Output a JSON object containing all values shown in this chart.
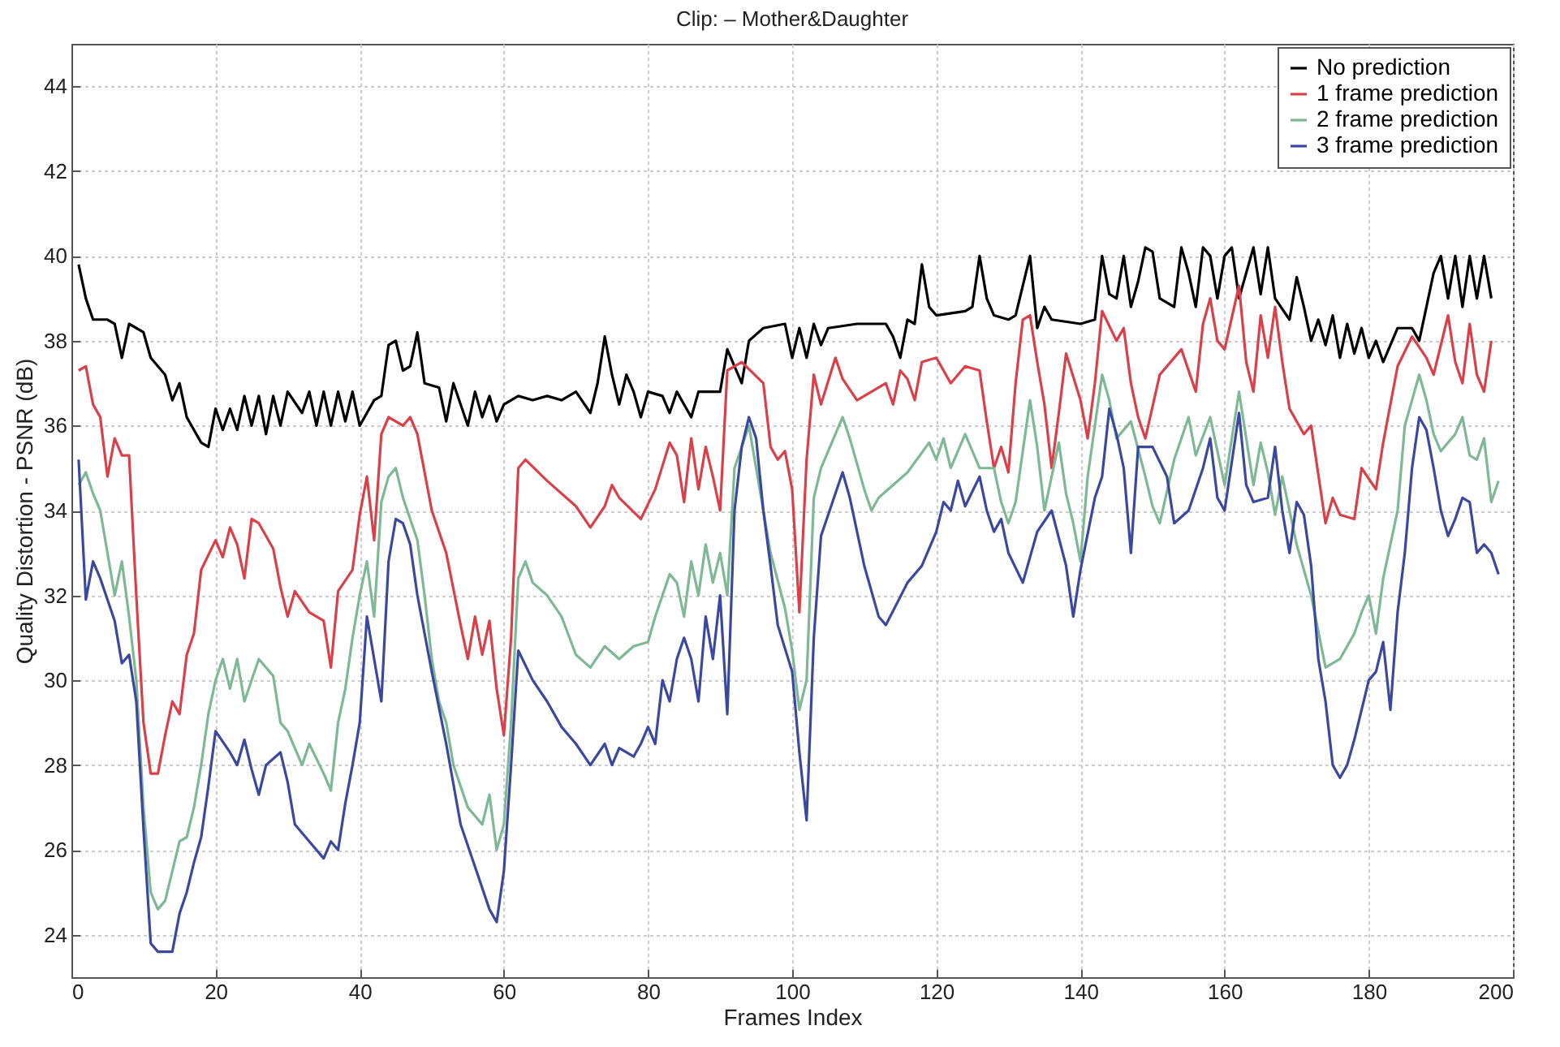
{
  "chart_data": {
    "type": "line",
    "title": "Clip: – Mother&Daughter",
    "xlabel": "Frames Index",
    "ylabel": "Quality Distortion - PSNR (dB)",
    "xlim": [
      0,
      200
    ],
    "xticks": [
      0,
      20,
      40,
      60,
      80,
      100,
      120,
      140,
      160,
      180,
      200
    ],
    "ylim": [
      23,
      45
    ],
    "yticks": [
      24,
      26,
      28,
      30,
      32,
      34,
      36,
      38,
      40,
      42,
      44
    ],
    "grid": true,
    "legend": "top right",
    "marker": "none",
    "line_style": "solid",
    "series": [
      {
        "name": "No prediction",
        "color": "#000000",
        "x": [
          1,
          2,
          3,
          5,
          6,
          7,
          8,
          10,
          11,
          13,
          14,
          15,
          16,
          18,
          19,
          20,
          21,
          22,
          23,
          24,
          25,
          26,
          27,
          28,
          29,
          30,
          32,
          33,
          34,
          35,
          36,
          37,
          38,
          39,
          40,
          42,
          43,
          44,
          45,
          46,
          47,
          48,
          49,
          51,
          52,
          53,
          55,
          56,
          57,
          58,
          59,
          60,
          62,
          64,
          66,
          68,
          70,
          72,
          73,
          74,
          75,
          76,
          77,
          78,
          79,
          80,
          82,
          83,
          84,
          86,
          87,
          90,
          91,
          92,
          93,
          94,
          96,
          99,
          100,
          101,
          102,
          103,
          104,
          105,
          109,
          113,
          114,
          115,
          116,
          117,
          118,
          119,
          120,
          124,
          125,
          126,
          127,
          128,
          130,
          131,
          133,
          134,
          135,
          136,
          140,
          142,
          143,
          144,
          145,
          146,
          147,
          148,
          149,
          150,
          151,
          153,
          154,
          155,
          156,
          157,
          158,
          159,
          160,
          161,
          162,
          163,
          164,
          165,
          166,
          167,
          169,
          170,
          171,
          172,
          173,
          174,
          175,
          176,
          177,
          178,
          179,
          180,
          181,
          182,
          184,
          186,
          187,
          188,
          189,
          190,
          191,
          192,
          193,
          194,
          195,
          196,
          197
        ],
        "values": [
          39.8,
          39.0,
          38.5,
          38.5,
          38.4,
          37.6,
          38.4,
          38.2,
          37.6,
          37.2,
          36.6,
          37.0,
          36.2,
          35.6,
          35.5,
          36.4,
          35.9,
          36.4,
          35.9,
          36.7,
          36.0,
          36.7,
          35.8,
          36.7,
          36.0,
          36.8,
          36.3,
          36.8,
          36.0,
          36.8,
          36.0,
          36.8,
          36.1,
          36.8,
          36.0,
          36.6,
          36.7,
          37.9,
          38.0,
          37.3,
          37.4,
          38.2,
          37.0,
          36.9,
          36.1,
          37.0,
          36.0,
          36.8,
          36.2,
          36.7,
          36.1,
          36.5,
          36.7,
          36.6,
          36.7,
          36.6,
          36.8,
          36.3,
          37.0,
          38.1,
          37.2,
          36.5,
          37.2,
          36.8,
          36.2,
          36.8,
          36.7,
          36.3,
          36.8,
          36.2,
          36.8,
          36.8,
          37.8,
          37.4,
          37.0,
          38.0,
          38.3,
          38.4,
          37.6,
          38.3,
          37.6,
          38.4,
          37.9,
          38.3,
          38.4,
          38.4,
          38.1,
          37.6,
          38.5,
          38.4,
          39.8,
          38.8,
          38.6,
          38.7,
          38.8,
          40.0,
          39.0,
          38.6,
          38.5,
          38.6,
          40.0,
          38.3,
          38.8,
          38.5,
          38.4,
          38.5,
          40.0,
          39.1,
          39.0,
          40.0,
          38.8,
          39.4,
          40.2,
          40.1,
          39.0,
          38.8,
          40.2,
          39.6,
          38.8,
          40.2,
          40.0,
          39.0,
          40.0,
          40.2,
          39.0,
          39.6,
          40.2,
          39.1,
          40.2,
          39.0,
          38.5,
          39.5,
          38.8,
          38.0,
          38.5,
          37.9,
          38.6,
          37.6,
          38.4,
          37.7,
          38.3,
          37.6,
          38.0,
          37.5,
          38.3,
          38.3,
          38.0,
          38.8,
          39.6,
          40.0,
          39.0,
          40.0,
          38.8,
          40.0,
          39.0,
          40.0,
          39.0
        ]
      },
      {
        "name": "1 frame prediction",
        "color": "#d9404a",
        "x": [
          1,
          2,
          3,
          4,
          5,
          6,
          7,
          8,
          9,
          10,
          11,
          12,
          13,
          14,
          15,
          16,
          17,
          18,
          20,
          21,
          22,
          23,
          24,
          25,
          26,
          28,
          29,
          30,
          31,
          33,
          35,
          36,
          37,
          39,
          40,
          41,
          42,
          43,
          44,
          46,
          47,
          48,
          50,
          52,
          54,
          55,
          56,
          57,
          58,
          59,
          60,
          61,
          62,
          63,
          66,
          70,
          72,
          74,
          75,
          76,
          79,
          81,
          83,
          84,
          85,
          86,
          87,
          88,
          89,
          90,
          91,
          93,
          96,
          97,
          98,
          99,
          100,
          101,
          102,
          103,
          104,
          106,
          107,
          109,
          113,
          114,
          115,
          116,
          117,
          118,
          120,
          122,
          124,
          126,
          127,
          128,
          129,
          130,
          131,
          132,
          133,
          134,
          135,
          136,
          137,
          138,
          140,
          141,
          142,
          143,
          145,
          146,
          147,
          148,
          149,
          151,
          154,
          156,
          157,
          158,
          159,
          160,
          162,
          163,
          164,
          165,
          166,
          167,
          168,
          169,
          171,
          172,
          174,
          175,
          176,
          178,
          179,
          181,
          182,
          184,
          186,
          188,
          189,
          191,
          192,
          193,
          194,
          195,
          196,
          197
        ],
        "values": [
          37.3,
          37.4,
          36.5,
          36.2,
          34.8,
          35.7,
          35.3,
          35.3,
          32.0,
          29.0,
          27.8,
          27.8,
          28.7,
          29.5,
          29.2,
          30.6,
          31.1,
          32.6,
          33.3,
          32.9,
          33.6,
          33.2,
          32.4,
          33.8,
          33.7,
          33.1,
          32.2,
          31.5,
          32.1,
          31.6,
          31.4,
          30.3,
          32.1,
          32.6,
          33.9,
          34.8,
          33.3,
          35.8,
          36.2,
          36.0,
          36.2,
          35.8,
          34.0,
          33.0,
          31.3,
          30.5,
          31.5,
          30.6,
          31.4,
          29.8,
          28.7,
          31.0,
          35.0,
          35.2,
          34.7,
          34.1,
          33.6,
          34.1,
          34.6,
          34.3,
          33.8,
          34.5,
          35.6,
          35.3,
          34.2,
          35.7,
          34.5,
          35.5,
          34.8,
          34.0,
          37.3,
          37.5,
          37.0,
          35.5,
          35.2,
          35.4,
          34.5,
          31.6,
          35.2,
          37.2,
          36.5,
          37.6,
          37.1,
          36.6,
          37.0,
          36.5,
          37.3,
          37.1,
          36.6,
          37.5,
          37.6,
          37.0,
          37.4,
          37.3,
          36.1,
          35.0,
          35.5,
          34.9,
          37.0,
          38.5,
          38.6,
          37.5,
          36.5,
          35.0,
          36.3,
          37.7,
          36.6,
          35.7,
          37.0,
          38.7,
          38.0,
          38.3,
          37.0,
          36.2,
          35.7,
          37.2,
          37.8,
          36.8,
          38.4,
          39.0,
          38.0,
          37.8,
          39.3,
          37.5,
          36.8,
          38.6,
          37.6,
          38.8,
          37.5,
          36.4,
          35.8,
          36.0,
          33.7,
          34.3,
          33.9,
          33.8,
          35.0,
          34.5,
          35.6,
          37.4,
          38.1,
          37.6,
          37.2,
          38.6,
          37.5,
          37.0,
          38.4,
          37.2,
          36.8,
          38.0
        ]
      },
      {
        "name": "2 frame prediction",
        "color": "#7fb894",
        "x": [
          1,
          2,
          3,
          4,
          5,
          6,
          7,
          8,
          9,
          10,
          11,
          12,
          13,
          14,
          15,
          16,
          17,
          18,
          19,
          20,
          21,
          22,
          23,
          24,
          25,
          26,
          28,
          29,
          30,
          32,
          33,
          35,
          36,
          37,
          38,
          39,
          40,
          41,
          42,
          43,
          44,
          45,
          46,
          48,
          49,
          50,
          51,
          52,
          53,
          55,
          57,
          58,
          59,
          60,
          61,
          62,
          63,
          64,
          66,
          68,
          70,
          72,
          74,
          76,
          78,
          80,
          81,
          83,
          84,
          85,
          86,
          87,
          88,
          89,
          90,
          91,
          92,
          94,
          96,
          97,
          99,
          100,
          101,
          102,
          103,
          104,
          106,
          107,
          108,
          110,
          111,
          112,
          116,
          119,
          120,
          121,
          122,
          124,
          126,
          128,
          129,
          130,
          131,
          133,
          134,
          135,
          137,
          138,
          139,
          140,
          141,
          143,
          144,
          145,
          147,
          149,
          150,
          151,
          153,
          155,
          156,
          158,
          160,
          162,
          164,
          165,
          166,
          167,
          168,
          170,
          172,
          174,
          176,
          178,
          179,
          180,
          181,
          182,
          183,
          184,
          185,
          187,
          188,
          189,
          190,
          192,
          193,
          194,
          195,
          196,
          197,
          198
        ],
        "values": [
          34.6,
          34.9,
          34.4,
          34.0,
          33.0,
          32.0,
          32.8,
          31.5,
          30.0,
          27.0,
          25.0,
          24.6,
          24.8,
          25.5,
          26.2,
          26.3,
          27.0,
          28.0,
          29.2,
          30.0,
          30.5,
          29.8,
          30.5,
          29.5,
          30.0,
          30.5,
          30.1,
          29.0,
          28.8,
          28.0,
          28.5,
          27.8,
          27.4,
          29.0,
          29.8,
          31.0,
          32.0,
          32.8,
          31.5,
          34.2,
          34.8,
          35.0,
          34.3,
          33.3,
          32.0,
          30.5,
          29.5,
          29.0,
          28.0,
          27.0,
          26.6,
          27.3,
          26.0,
          26.6,
          29.0,
          32.4,
          32.8,
          32.3,
          32.0,
          31.5,
          30.6,
          30.3,
          30.8,
          30.5,
          30.8,
          30.9,
          31.5,
          32.5,
          32.3,
          31.5,
          32.8,
          32.0,
          33.2,
          32.3,
          33.0,
          32.0,
          35.0,
          36.0,
          34.0,
          33.0,
          31.7,
          30.7,
          29.3,
          30.0,
          34.3,
          35.0,
          35.8,
          36.2,
          35.7,
          34.5,
          34.0,
          34.3,
          34.9,
          35.6,
          35.2,
          35.7,
          35.0,
          35.8,
          35.0,
          35.0,
          34.2,
          33.7,
          34.2,
          36.6,
          35.5,
          34.0,
          35.6,
          34.4,
          33.7,
          32.8,
          34.8,
          37.2,
          36.6,
          35.7,
          36.1,
          34.8,
          34.1,
          33.7,
          35.2,
          36.2,
          35.3,
          36.2,
          34.6,
          36.8,
          34.6,
          35.6,
          34.9,
          33.9,
          34.8,
          33.2,
          32.0,
          30.3,
          30.5,
          31.1,
          31.6,
          32.0,
          31.1,
          32.4,
          33.2,
          34.0,
          36.0,
          37.2,
          36.6,
          35.8,
          35.4,
          35.8,
          36.2,
          35.3,
          35.2,
          35.7,
          34.2,
          34.7
        ]
      },
      {
        "name": "3 frame prediction",
        "color": "#3b48a0",
        "x": [
          1,
          2,
          3,
          4,
          5,
          6,
          7,
          8,
          9,
          10,
          11,
          12,
          14,
          15,
          16,
          17,
          18,
          19,
          20,
          22,
          23,
          24,
          25,
          26,
          27,
          29,
          30,
          31,
          33,
          35,
          36,
          37,
          38,
          39,
          40,
          41,
          42,
          43,
          44,
          45,
          46,
          47,
          48,
          50,
          52,
          54,
          56,
          58,
          59,
          60,
          61,
          62,
          64,
          66,
          68,
          70,
          72,
          74,
          75,
          76,
          78,
          79,
          80,
          81,
          82,
          83,
          84,
          85,
          86,
          87,
          88,
          89,
          90,
          91,
          92,
          93,
          94,
          95,
          96,
          97,
          98,
          100,
          101,
          102,
          103,
          104,
          106,
          107,
          108,
          110,
          112,
          113,
          116,
          118,
          120,
          121,
          122,
          123,
          124,
          126,
          127,
          128,
          129,
          130,
          132,
          134,
          136,
          138,
          139,
          140,
          142,
          143,
          144,
          145,
          146,
          147,
          148,
          150,
          152,
          153,
          155,
          157,
          158,
          159,
          160,
          162,
          163,
          164,
          166,
          167,
          168,
          169,
          170,
          171,
          172,
          173,
          174,
          175,
          176,
          177,
          178,
          180,
          181,
          182,
          183,
          184,
          185,
          186,
          187,
          188,
          189,
          190,
          191,
          192,
          193,
          194,
          195,
          196,
          197,
          198
        ],
        "values": [
          35.2,
          31.9,
          32.8,
          32.4,
          31.9,
          31.4,
          30.4,
          30.6,
          29.5,
          26.5,
          23.8,
          23.6,
          23.6,
          24.5,
          25.0,
          25.7,
          26.3,
          27.5,
          28.8,
          28.3,
          28.0,
          28.6,
          27.9,
          27.3,
          28.0,
          28.3,
          27.6,
          26.6,
          26.2,
          25.8,
          26.2,
          26.0,
          27.1,
          28.0,
          29.0,
          31.5,
          30.5,
          29.5,
          32.8,
          33.8,
          33.7,
          33.2,
          32.0,
          30.2,
          28.5,
          26.6,
          25.6,
          24.6,
          24.3,
          25.5,
          28.0,
          30.7,
          30.0,
          29.5,
          28.9,
          28.5,
          28.0,
          28.5,
          28.0,
          28.4,
          28.2,
          28.5,
          28.9,
          28.5,
          30.0,
          29.5,
          30.5,
          31.0,
          30.5,
          29.5,
          31.5,
          30.5,
          32.0,
          29.2,
          34.0,
          35.5,
          36.2,
          35.7,
          34.0,
          32.7,
          31.3,
          30.2,
          28.3,
          26.7,
          31.0,
          33.4,
          34.4,
          34.9,
          34.3,
          32.7,
          31.5,
          31.3,
          32.3,
          32.7,
          33.5,
          34.2,
          34.0,
          34.7,
          34.1,
          34.8,
          34.0,
          33.5,
          33.8,
          33.0,
          32.3,
          33.5,
          34.0,
          32.7,
          31.5,
          32.6,
          34.3,
          34.8,
          36.4,
          35.8,
          35.0,
          33.0,
          35.5,
          35.5,
          34.8,
          33.7,
          34.0,
          35.0,
          35.7,
          34.3,
          34.0,
          36.3,
          34.6,
          34.2,
          34.3,
          35.5,
          34.0,
          33.0,
          34.2,
          33.9,
          32.7,
          30.5,
          29.5,
          28.0,
          27.7,
          28.0,
          28.6,
          30.0,
          30.2,
          30.9,
          29.3,
          31.6,
          33.0,
          35.0,
          36.2,
          35.9,
          35.0,
          34.0,
          33.4,
          33.8,
          34.3,
          34.2,
          33.0,
          33.2,
          33.0,
          32.5
        ]
      }
    ]
  }
}
